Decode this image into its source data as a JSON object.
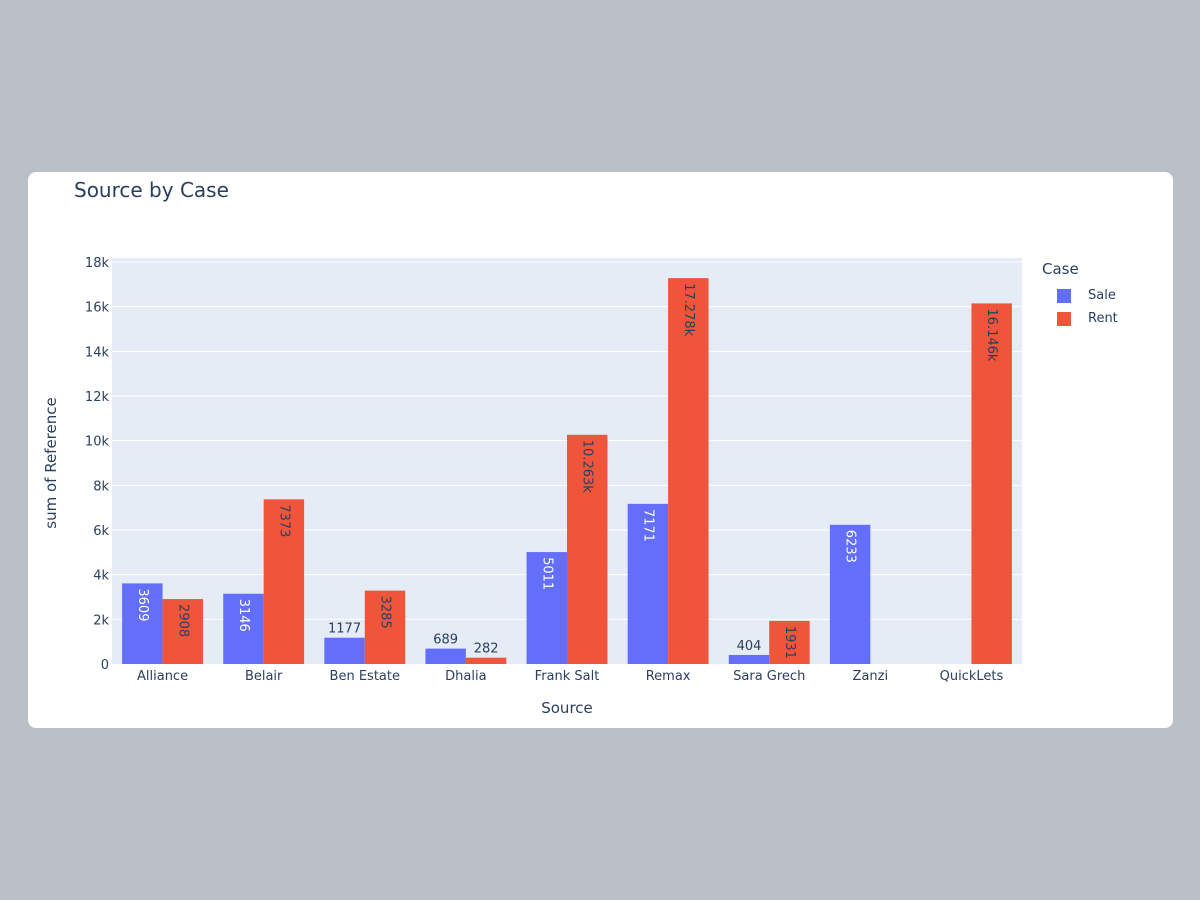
{
  "chart_data": {
    "type": "bar",
    "title": "Source by Case",
    "xlabel": "Source",
    "ylabel": "sum of Reference",
    "categories": [
      "Alliance",
      "Belair",
      "Ben Estate",
      "Dhalia",
      "Frank Salt",
      "Remax",
      "Sara Grech",
      "Zanzi",
      "QuickLets"
    ],
    "ylim": [
      0,
      18000
    ],
    "yticks": [
      0,
      2000,
      4000,
      6000,
      8000,
      10000,
      12000,
      14000,
      16000,
      18000
    ],
    "ytick_labels": [
      "0",
      "2k",
      "4k",
      "6k",
      "8k",
      "10k",
      "12k",
      "14k",
      "16k",
      "18k"
    ],
    "grid": true,
    "legend_title": "Case",
    "legend_position": "right",
    "series": [
      {
        "name": "Sale",
        "color": "#636efa",
        "values": [
          3609,
          3146,
          1177,
          689,
          5011,
          7171,
          404,
          6233,
          null
        ],
        "labels": [
          "3609",
          "3146",
          "1177",
          "689",
          "5011",
          "7171",
          "404",
          "6233",
          ""
        ]
      },
      {
        "name": "Rent",
        "color": "#ef553b",
        "values": [
          2908,
          7373,
          3285,
          282,
          10263,
          17278,
          1931,
          null,
          16146
        ],
        "labels": [
          "2908",
          "7373",
          "3285",
          "282",
          "10.263k",
          "17.278k",
          "1931",
          "",
          "16.146k"
        ]
      }
    ]
  }
}
